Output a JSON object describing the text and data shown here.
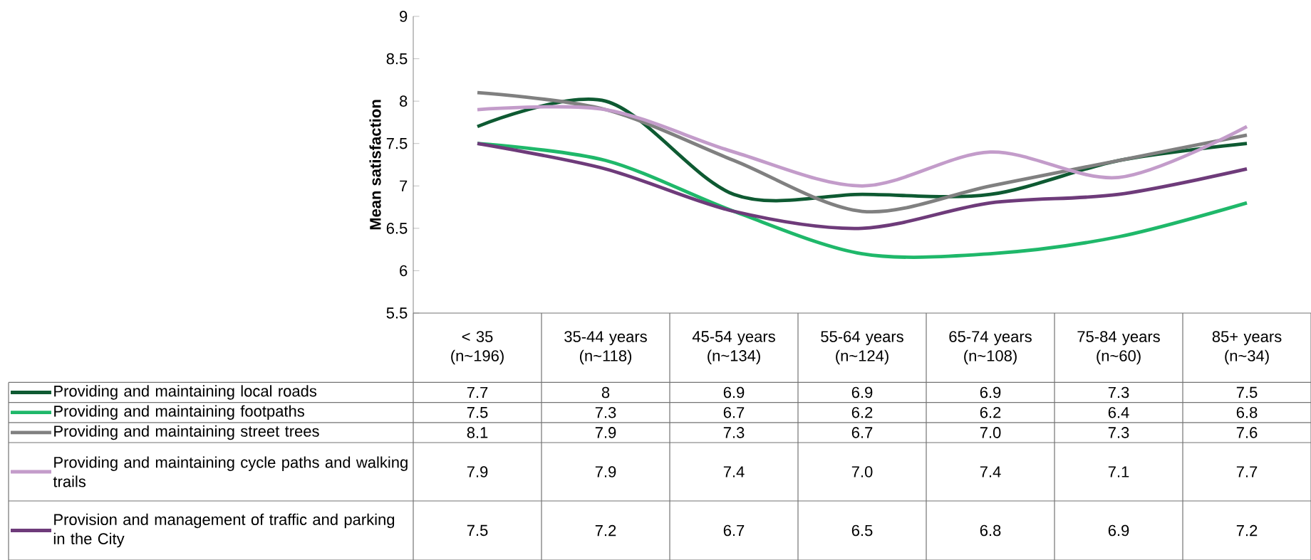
{
  "chart_data": {
    "type": "line",
    "ylabel": "Mean satisfaction",
    "categories": [
      "< 35 (n~196)",
      "35-44 years (n~118)",
      "45-54 years (n~134)",
      "55-64 years (n~124)",
      "65-74 years (n~108)",
      "75-84 years (n~60)",
      "85+ years (n~34)"
    ],
    "series": [
      {
        "name": "Providing and maintaining local roads",
        "color": "#0e5a32",
        "values": [
          7.7,
          8,
          6.9,
          6.9,
          6.9,
          7.3,
          7.5
        ],
        "value_labels": [
          "7.7",
          "8",
          "6.9",
          "6.9",
          "6.9",
          "7.3",
          "7.5"
        ]
      },
      {
        "name": "Providing and maintaining footpaths",
        "color": "#1fb86a",
        "values": [
          7.5,
          7.3,
          6.7,
          6.2,
          6.2,
          6.4,
          6.8
        ],
        "value_labels": [
          "7.5",
          "7.3",
          "6.7",
          "6.2",
          "6.2",
          "6.4",
          "6.8"
        ]
      },
      {
        "name": "Providing and maintaining street trees",
        "color": "#808080",
        "values": [
          8.1,
          7.9,
          7.3,
          6.7,
          7.0,
          7.3,
          7.6
        ],
        "value_labels": [
          "8.1",
          "7.9",
          "7.3",
          "6.7",
          "7.0",
          "7.3",
          "7.6"
        ]
      },
      {
        "name": "Providing and maintaining cycle paths and walking trails",
        "color": "#c39cca",
        "values": [
          7.9,
          7.9,
          7.4,
          7.0,
          7.4,
          7.1,
          7.7
        ],
        "value_labels": [
          "7.9",
          "7.9",
          "7.4",
          "7.0",
          "7.4",
          "7.1",
          "7.7"
        ]
      },
      {
        "name": "Provision and management of traffic and parking in the City",
        "color": "#6e3b7a",
        "values": [
          7.5,
          7.2,
          6.7,
          6.5,
          6.8,
          6.9,
          7.2
        ],
        "value_labels": [
          "7.5",
          "7.2",
          "6.7",
          "6.5",
          "6.8",
          "6.9",
          "7.2"
        ]
      }
    ],
    "ylim": [
      5.5,
      9
    ],
    "yticks": [
      5.5,
      6,
      6.5,
      7,
      7.5,
      8,
      8.5,
      9
    ],
    "grid": false,
    "legend": "bottom"
  }
}
